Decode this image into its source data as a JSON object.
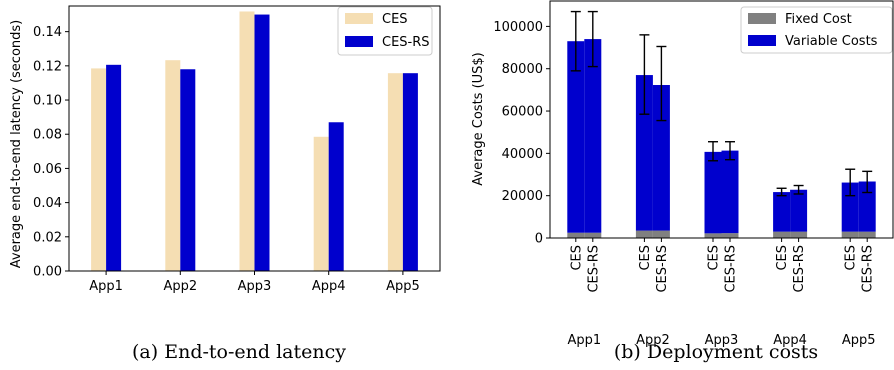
{
  "chart_data": [
    {
      "type": "bar",
      "caption": "(a) End-to-end latency",
      "categories": [
        "App1",
        "App2",
        "App3",
        "App4",
        "App5"
      ],
      "series": [
        {
          "name": "CES",
          "color": "#f5deb3",
          "values": [
            0.1185,
            0.1233,
            0.1518,
            0.0785,
            0.1157
          ]
        },
        {
          "name": "CES-RS",
          "color": "#0000cd",
          "values": [
            0.1206,
            0.118,
            0.15,
            0.087,
            0.1157
          ]
        }
      ],
      "xlabel": "",
      "ylabel": "Average end-to-end latency (seconds)",
      "ylim": [
        0,
        0.155
      ],
      "yticks": [
        "0.00",
        "0.02",
        "0.04",
        "0.06",
        "0.08",
        "0.10",
        "0.12",
        "0.14"
      ],
      "legend_position": "top-right",
      "grid": false
    },
    {
      "type": "bar",
      "stacked": true,
      "caption": "(b) Deployment costs",
      "categories": [
        "App1",
        "App2",
        "App3",
        "App4",
        "App5"
      ],
      "bar_labels": [
        "CES",
        "CES-RS"
      ],
      "series": [
        {
          "name": "Fixed Cost",
          "color": "#808080",
          "values": {
            "CES": [
              2500,
              3500,
              2200,
              3000,
              3000
            ],
            "CES-RS": [
              2500,
              3500,
              2300,
              3000,
              3000
            ]
          }
        },
        {
          "name": "Variable Costs",
          "color": "#0000cd",
          "values": {
            "CES": [
              90500,
              73500,
              38500,
              18700,
              23200
            ],
            "CES-RS": [
              91500,
              68800,
              39000,
              19800,
              23700
            ]
          }
        }
      ],
      "totals": {
        "CES": [
          93000,
          77000,
          40700,
          21700,
          26200
        ],
        "CES-RS": [
          94000,
          72300,
          41300,
          22800,
          26700
        ]
      },
      "error_bars": {
        "CES": [
          [
            79000,
            107000
          ],
          [
            58500,
            96000
          ],
          [
            36500,
            45500
          ],
          [
            20000,
            23500
          ],
          [
            20000,
            32500
          ]
        ],
        "CES-RS": [
          [
            81000,
            107000
          ],
          [
            55500,
            90500
          ],
          [
            37000,
            45500
          ],
          [
            20800,
            24800
          ],
          [
            21500,
            31500
          ]
        ]
      },
      "xlabel": "",
      "ylabel": "Average Costs (US$)",
      "ylim": [
        0,
        112000
      ],
      "yticks": [
        "0",
        "20000",
        "40000",
        "60000",
        "80000",
        "100000"
      ],
      "legend_position": "top-right",
      "grid": false
    }
  ]
}
